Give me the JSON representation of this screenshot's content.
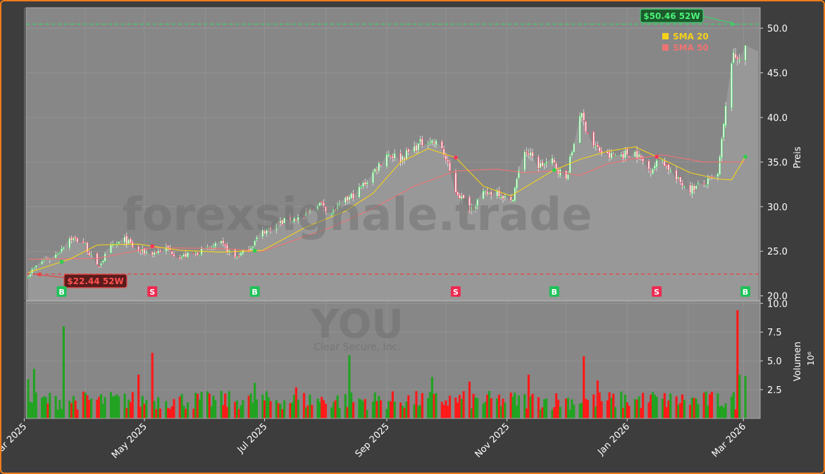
{
  "colors": {
    "background": "#3d3d3d",
    "panel": "#878787",
    "border": "#f07d1a",
    "up": "#22a322",
    "down": "#ff1a1a",
    "sma20": "#f5d21a",
    "sma50": "#f07373",
    "high_line": "#3fcf6a",
    "low_line": "#e84545"
  },
  "watermark": {
    "main": "forexsignale.trade",
    "sub": "YOU",
    "sub2": "Clear Secure, Inc."
  },
  "chart_data": {
    "type": "candlestick",
    "x_tick_labels": [
      "Mar 2025",
      "May 2025",
      "Jul 2025",
      "Sep 2025",
      "Nov 2025",
      "Jan 2026",
      "Mar 2026"
    ],
    "price_axis": {
      "label": "Preis",
      "ticks": [
        "20.0",
        "25.0",
        "30.0",
        "35.0",
        "40.0",
        "45.0",
        "50.0"
      ],
      "range": [
        19.5,
        52.3
      ]
    },
    "volume_axis": {
      "label": "Volumen",
      "unit": "10⁶",
      "ticks": [
        "2.5",
        "5.0",
        "7.5",
        "10.0"
      ],
      "range": [
        0,
        10.2
      ]
    },
    "high_52w": {
      "value": 50.46,
      "label": "$50.46 52W"
    },
    "low_52w": {
      "value": 22.44,
      "label": "$22.44 52W"
    },
    "legend": {
      "position": "top-right",
      "items": [
        {
          "name": "SMA 20",
          "color": "#f5d21a"
        },
        {
          "name": "SMA 50",
          "color": "#f07373"
        }
      ]
    },
    "signals": [
      {
        "type": "B",
        "date": "2025-03-20"
      },
      {
        "type": "S",
        "date": "2025-05-05"
      },
      {
        "type": "B",
        "date": "2025-06-26"
      },
      {
        "type": "S",
        "date": "2025-10-06"
      },
      {
        "type": "B",
        "date": "2025-11-25"
      },
      {
        "type": "S",
        "date": "2026-01-16"
      },
      {
        "type": "B",
        "date": "2026-03-02"
      }
    ],
    "price_path": [
      [
        "2025-03-03",
        22.4
      ],
      [
        "2025-03-10",
        23.9
      ],
      [
        "2025-03-17",
        24.6
      ],
      [
        "2025-03-24",
        26.5
      ],
      [
        "2025-03-31",
        26.0
      ],
      [
        "2025-04-07",
        23.2
      ],
      [
        "2025-04-14",
        25.4
      ],
      [
        "2025-04-21",
        26.3
      ],
      [
        "2025-04-28",
        25.0
      ],
      [
        "2025-05-05",
        24.8
      ],
      [
        "2025-05-12",
        25.3
      ],
      [
        "2025-05-19",
        24.4
      ],
      [
        "2025-05-26",
        24.7
      ],
      [
        "2025-06-02",
        25.2
      ],
      [
        "2025-06-09",
        25.8
      ],
      [
        "2025-06-16",
        24.3
      ],
      [
        "2025-06-23",
        25.3
      ],
      [
        "2025-06-30",
        27.2
      ],
      [
        "2025-07-07",
        28.0
      ],
      [
        "2025-07-14",
        28.6
      ],
      [
        "2025-07-21",
        28.8
      ],
      [
        "2025-07-28",
        30.5
      ],
      [
        "2025-08-04",
        29.3
      ],
      [
        "2025-08-11",
        30.6
      ],
      [
        "2025-08-18",
        31.9
      ],
      [
        "2025-08-25",
        33.8
      ],
      [
        "2025-09-01",
        36.0
      ],
      [
        "2025-09-08",
        35.4
      ],
      [
        "2025-09-15",
        36.6
      ],
      [
        "2025-09-22",
        37.6
      ],
      [
        "2025-09-29",
        36.6
      ],
      [
        "2025-10-06",
        31.8
      ],
      [
        "2025-10-13",
        29.8
      ],
      [
        "2025-10-20",
        31.3
      ],
      [
        "2025-10-27",
        31.8
      ],
      [
        "2025-11-03",
        30.4
      ],
      [
        "2025-11-10",
        36.4
      ],
      [
        "2025-11-17",
        34.6
      ],
      [
        "2025-11-24",
        35.0
      ],
      [
        "2025-12-01",
        33.0
      ],
      [
        "2025-12-08",
        40.5
      ],
      [
        "2025-12-15",
        36.8
      ],
      [
        "2025-12-22",
        35.6
      ],
      [
        "2026-01-05",
        36.1
      ],
      [
        "2026-01-12",
        34.2
      ],
      [
        "2026-01-19",
        35.3
      ],
      [
        "2026-01-26",
        33.0
      ],
      [
        "2026-02-02",
        32.0
      ],
      [
        "2026-02-09",
        32.5
      ],
      [
        "2026-02-16",
        33.5
      ],
      [
        "2026-02-23",
        46.5
      ],
      [
        "2026-03-02",
        47.4
      ]
    ],
    "sma20_path": [
      [
        "2025-03-03",
        22.6
      ],
      [
        "2025-03-24",
        24.1
      ],
      [
        "2025-04-07",
        25.7
      ],
      [
        "2025-04-28",
        25.8
      ],
      [
        "2025-05-19",
        25.1
      ],
      [
        "2025-06-09",
        24.9
      ],
      [
        "2025-06-30",
        25.1
      ],
      [
        "2025-07-21",
        27.6
      ],
      [
        "2025-08-11",
        29.5
      ],
      [
        "2025-08-25",
        31.5
      ],
      [
        "2025-09-08",
        35.0
      ],
      [
        "2025-09-22",
        36.5
      ],
      [
        "2025-10-06",
        35.5
      ],
      [
        "2025-10-20",
        32.3
      ],
      [
        "2025-11-03",
        31.2
      ],
      [
        "2025-11-24",
        34.0
      ],
      [
        "2025-12-08",
        35.3
      ],
      [
        "2025-12-22",
        36.2
      ],
      [
        "2026-01-05",
        36.7
      ],
      [
        "2026-01-19",
        35.3
      ],
      [
        "2026-02-02",
        33.8
      ],
      [
        "2026-02-16",
        33.1
      ],
      [
        "2026-02-23",
        33.0
      ],
      [
        "2026-03-02",
        35.6
      ]
    ],
    "sma50_path": [
      [
        "2025-03-03",
        24.1
      ],
      [
        "2025-04-07",
        24.2
      ],
      [
        "2025-05-05",
        25.4
      ],
      [
        "2025-06-09",
        25.3
      ],
      [
        "2025-06-30",
        25.0
      ],
      [
        "2025-08-04",
        27.7
      ],
      [
        "2025-08-25",
        29.8
      ],
      [
        "2025-09-15",
        32.3
      ],
      [
        "2025-10-06",
        34.0
      ],
      [
        "2025-10-27",
        34.2
      ],
      [
        "2025-11-10",
        33.8
      ],
      [
        "2025-11-24",
        34.0
      ],
      [
        "2025-12-08",
        33.5
      ],
      [
        "2025-12-22",
        34.8
      ],
      [
        "2026-01-05",
        35.4
      ],
      [
        "2026-01-19",
        35.8
      ],
      [
        "2026-02-09",
        35.0
      ],
      [
        "2026-03-02",
        35.0
      ]
    ],
    "volume_spikes": [
      [
        "2025-03-03",
        3.4
      ],
      [
        "2025-03-06",
        4.3
      ],
      [
        "2025-03-21",
        8.0
      ],
      [
        "2025-04-28",
        3.8
      ],
      [
        "2025-05-05",
        5.7
      ],
      [
        "2025-06-26",
        3.1
      ],
      [
        "2025-07-17",
        2.7
      ],
      [
        "2025-08-13",
        5.5
      ],
      [
        "2025-09-24",
        3.6
      ],
      [
        "2025-10-13",
        3.2
      ],
      [
        "2025-11-12",
        3.8
      ],
      [
        "2025-12-10",
        5.4
      ],
      [
        "2025-12-17",
        3.3
      ],
      [
        "2026-01-14",
        2.3
      ],
      [
        "2026-02-26",
        9.4
      ],
      [
        "2026-02-27",
        3.8
      ],
      [
        "2026-03-02",
        3.7
      ]
    ],
    "volume_baseline": 1.5
  }
}
